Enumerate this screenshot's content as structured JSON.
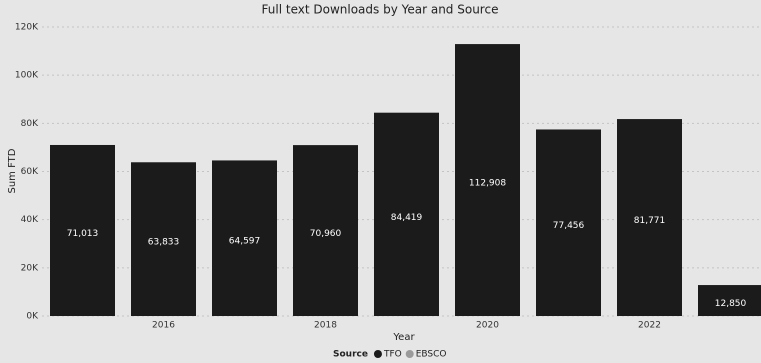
{
  "chart_data": {
    "type": "bar",
    "title": "Full text Downloads by Year and Source",
    "x_label": "Year",
    "y_label": "Sum FTD",
    "categories": [
      null,
      "2016",
      null,
      "2018",
      null,
      "2020",
      null,
      "2022",
      null
    ],
    "series": [
      {
        "name": "TFO",
        "color": "#1b1b1b",
        "values": [
          71013,
          63833,
          64597,
          70960,
          84419,
          112908,
          77456,
          81771,
          12850
        ],
        "value_labels": [
          "71,013",
          "63,833",
          "64,597",
          "70,960",
          "84,419",
          "112,908",
          "77,456",
          "81,771",
          "12,850"
        ]
      }
    ],
    "legend": {
      "title": "Source",
      "entries": [
        {
          "name": "TFO",
          "color": "#1b1b1b"
        },
        {
          "name": "EBSCO",
          "color": "#9a9a9a"
        }
      ]
    },
    "ylim": [
      0,
      120000
    ],
    "yticks": [
      {
        "value": 0,
        "label": "0K"
      },
      {
        "value": 20000,
        "label": "20K"
      },
      {
        "value": 40000,
        "label": "40K"
      },
      {
        "value": 60000,
        "label": "60K"
      },
      {
        "value": 80000,
        "label": "80K"
      },
      {
        "value": 100000,
        "label": "100K"
      },
      {
        "value": 120000,
        "label": "120K"
      }
    ],
    "grid": true
  }
}
